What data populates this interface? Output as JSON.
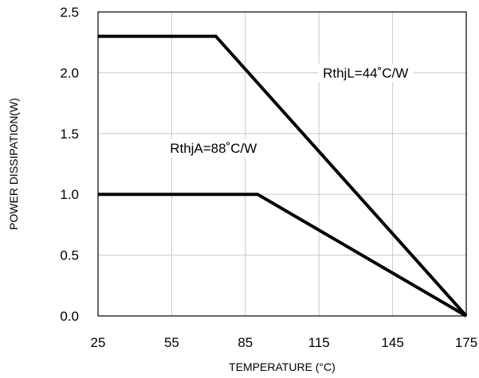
{
  "chart_data": {
    "type": "line",
    "xlabel": "TEMPERATURE (°C)",
    "ylabel": "POWER DISSIPATION(W)",
    "xlim": [
      25,
      175
    ],
    "ylim": [
      0,
      2.5
    ],
    "x_ticks": [
      "25",
      "55",
      "85",
      "115",
      "145",
      "175"
    ],
    "y_ticks": [
      "0.0",
      "0.5",
      "1.0",
      "1.5",
      "2.0",
      "2.5"
    ],
    "grid": true,
    "series": [
      {
        "name": "RthjL=44˚C/W",
        "x": [
          25,
          73,
          175
        ],
        "y": [
          2.3,
          2.3,
          0.0
        ]
      },
      {
        "name": "RthjA=88˚C/W",
        "x": [
          25,
          90,
          175
        ],
        "y": [
          1.0,
          1.0,
          0.0
        ]
      }
    ],
    "annotations": [
      {
        "text": "RthjL=44˚C/W",
        "x": 134,
        "y": 2.0
      },
      {
        "text": "RthjA=88˚C/W",
        "x": 72,
        "y": 1.38
      }
    ]
  }
}
